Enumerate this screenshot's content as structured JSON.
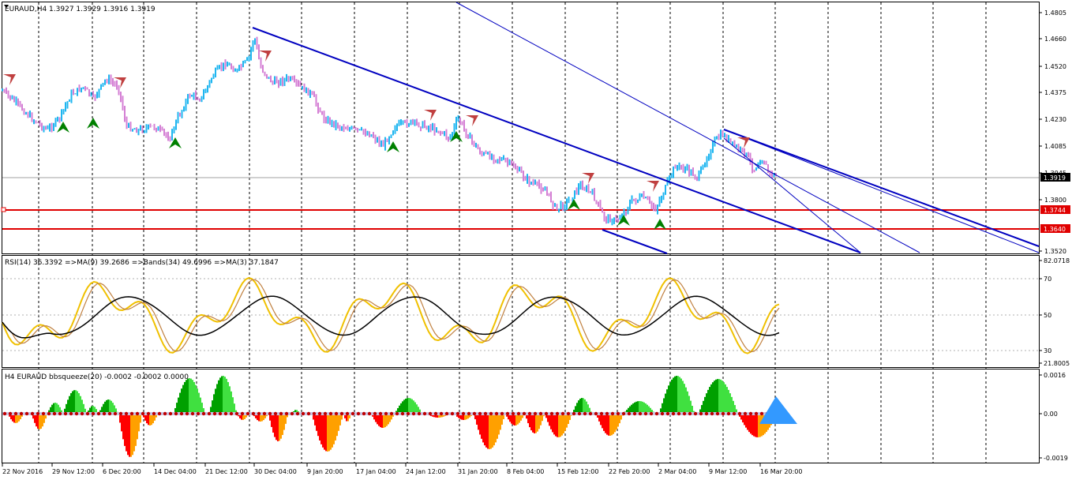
{
  "colors": {
    "background": "#ffffff",
    "grid": "#000000",
    "bull_candle": "#1fb6f0",
    "bear_candle": "#d47fd4",
    "trend_line": "#0000c0",
    "level_line": "#e00000",
    "rsi_fast": "#f0c000",
    "rsi_slow": "#c08040",
    "rsi_ma": "#000000",
    "squeeze_up_strong": "#00a000",
    "squeeze_up_weak": "#40e040",
    "squeeze_down_strong": "#ff0000",
    "squeeze_down_weak": "#ffa000",
    "squeeze_dot": "#c00000",
    "arrow_up": "#008000",
    "arrow_down": "#c04040",
    "forecast_arrow": "#3399ff"
  },
  "main_panel": {
    "title": "EURAUD,H4  1.3927 1.3929 1.3916 1.3919",
    "current_price": "1.3919",
    "level1": "1.3744",
    "level2": "1.3640",
    "price_axis": [
      "1.4805",
      "1.4660",
      "1.4520",
      "1.4375",
      "1.4230",
      "1.4085",
      "1.3945",
      "1.3800",
      "1.3520"
    ]
  },
  "rsi_panel": {
    "title": "RSI(14) 36.3392  =>MA(9) 39.2686  =>Bands(34) 49.6996  =>MA(3) 37.1847",
    "axis": [
      "82.0718",
      "70",
      "50",
      "30",
      "21.8005"
    ]
  },
  "squeeze_panel": {
    "title": "H4 EURAUD bbsqueeze(20) -0.0002 -0.0002 0.0000",
    "axis": [
      "0.0016",
      "0.00",
      "-0.0019"
    ]
  },
  "time_axis": [
    "22 Nov 2016",
    "29 Nov 12:00",
    "6 Dec 20:00",
    "14 Dec 04:00",
    "21 Dec 12:00",
    "30 Dec 04:00",
    "9 Jan 20:00",
    "17 Jan 04:00",
    "24 Jan 12:00",
    "31 Jan 20:00",
    "8 Feb 04:00",
    "15 Feb 12:00",
    "22 Feb 20:00",
    "2 Mar 04:00",
    "9 Mar 12:00",
    "16 Mar 20:00"
  ],
  "chart_data": {
    "type": "line",
    "title": "EURAUD,H4  1.3927 1.3929 1.3916 1.3919",
    "x": [
      "22 Nov 2016",
      "29 Nov 12:00",
      "6 Dec 20:00",
      "14 Dec 04:00",
      "21 Dec 12:00",
      "30 Dec 04:00",
      "9 Jan 20:00",
      "17 Jan 04:00",
      "24 Jan 12:00",
      "31 Jan 20:00",
      "8 Feb 04:00",
      "15 Feb 12:00",
      "22 Feb 20:00",
      "2 Mar 04:00",
      "9 Mar 12:00",
      "16 Mar 20:00"
    ],
    "series": [
      {
        "values": [
          1.436,
          1.433,
          1.419,
          1.415,
          1.448,
          1.46,
          1.443,
          1.408,
          1.418,
          1.42,
          1.396,
          1.38,
          1.375,
          1.398,
          1.415,
          1.3919
        ]
      }
    ],
    "ylim": [
      1.352,
      1.4805
    ]
  }
}
